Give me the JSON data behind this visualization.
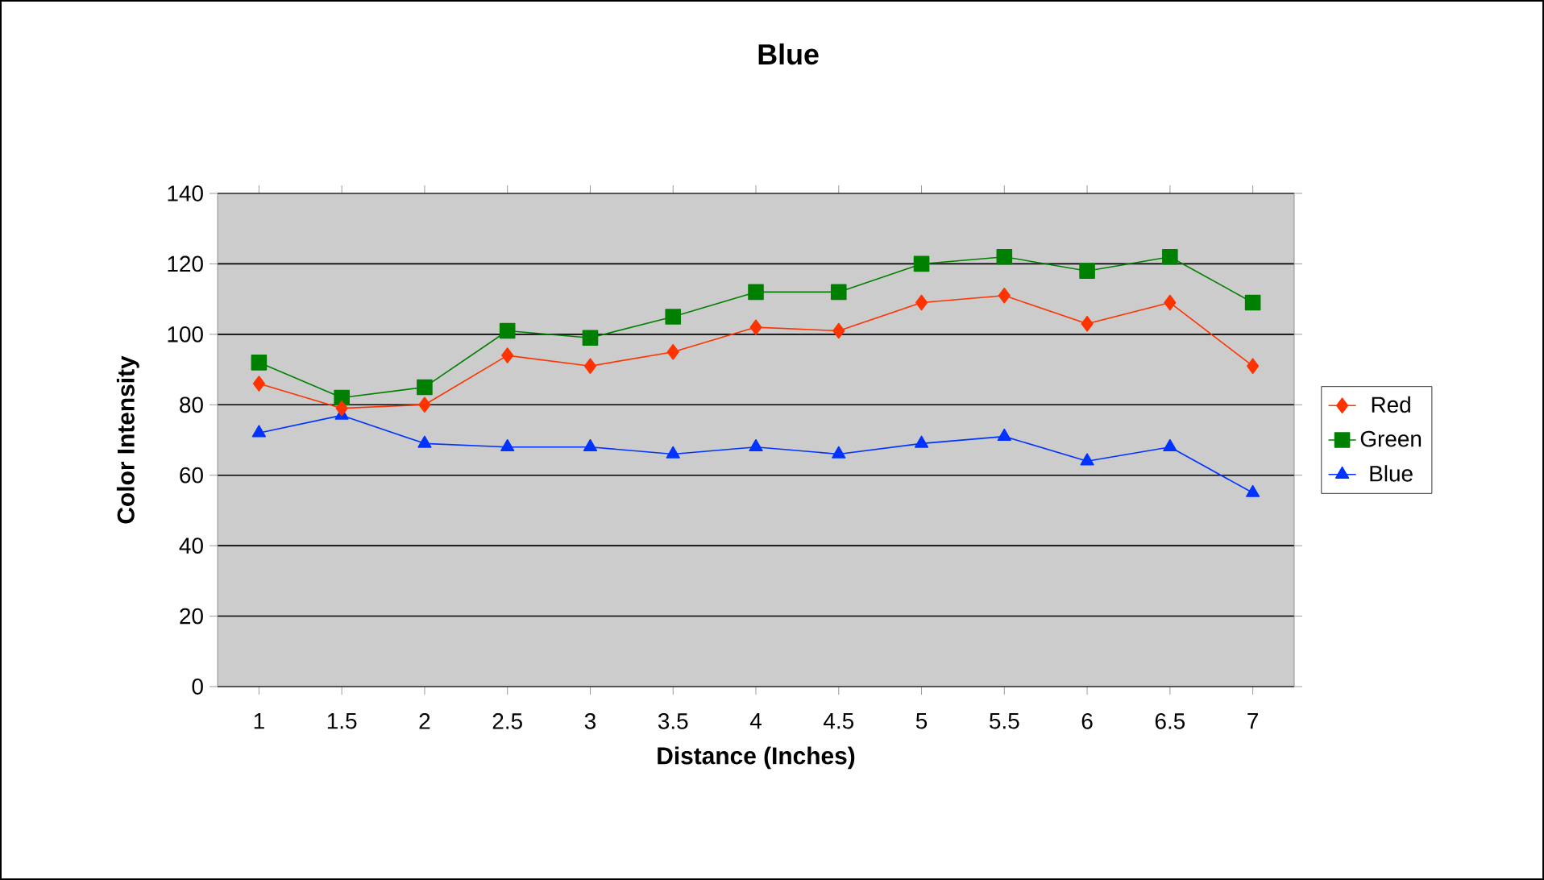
{
  "chart_data": {
    "type": "line",
    "title": "Blue",
    "xlabel": "Distance (Inches)",
    "ylabel": "Color Intensity",
    "categories": [
      "1",
      "1.5",
      "2",
      "2.5",
      "3",
      "3.5",
      "4",
      "4.5",
      "5",
      "5.5",
      "6",
      "6.5",
      "7"
    ],
    "series": [
      {
        "name": "Red",
        "color": "#ff3300",
        "marker": "diamond",
        "values": [
          86,
          79,
          80,
          94,
          91,
          95,
          102,
          101,
          109,
          111,
          103,
          109,
          91
        ]
      },
      {
        "name": "Green",
        "color": "#008000",
        "marker": "square",
        "values": [
          92,
          82,
          85,
          101,
          99,
          105,
          112,
          112,
          120,
          122,
          118,
          122,
          109
        ]
      },
      {
        "name": "Blue",
        "color": "#0033ff",
        "marker": "triangle",
        "values": [
          72,
          77,
          69,
          68,
          68,
          66,
          68,
          66,
          69,
          71,
          64,
          68,
          55
        ]
      }
    ],
    "ylim": [
      0,
      140
    ],
    "yticks": [
      0,
      20,
      40,
      60,
      80,
      100,
      120,
      140
    ],
    "grid": "y",
    "legend": "right",
    "line_style": "solid"
  }
}
